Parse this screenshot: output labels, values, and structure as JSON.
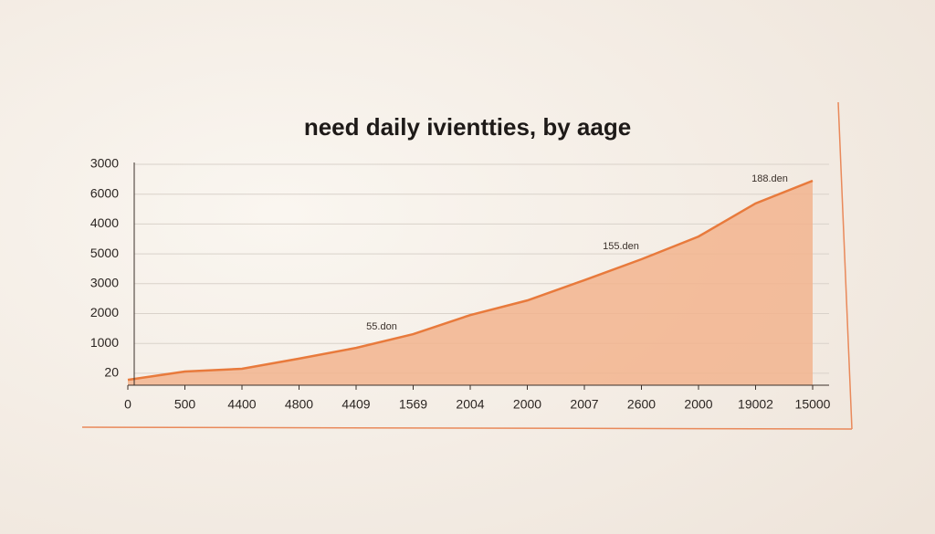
{
  "chart_data": {
    "type": "area",
    "title": "need daily ivientties, by aage",
    "categories": [
      "0",
      "500",
      "4400",
      "4800",
      "4409",
      "1569",
      "2004",
      "2000",
      "2007",
      "2600",
      "2000",
      "19002",
      "15000"
    ],
    "values": [
      -0.22,
      0.06,
      0.15,
      0.49,
      0.85,
      1.31,
      1.95,
      2.44,
      3.12,
      3.82,
      4.58,
      5.69,
      6.45
    ],
    "color": "#e87a3c",
    "fill": "#f2b48e",
    "ylim": [
      -0.4,
      7
    ],
    "yticks": [
      {
        "value": 0,
        "label": "20"
      },
      {
        "value": 1,
        "label": "1000"
      },
      {
        "value": 2,
        "label": "2000"
      },
      {
        "value": 3,
        "label": "3000"
      },
      {
        "value": 4,
        "label": "5000"
      },
      {
        "value": 5,
        "label": "4000"
      },
      {
        "value": 6,
        "label": "6000"
      },
      {
        "value": 7,
        "label": "3000"
      }
    ],
    "grid": true,
    "annotations": [
      "55.don",
      "155.den",
      "188.den"
    ]
  }
}
